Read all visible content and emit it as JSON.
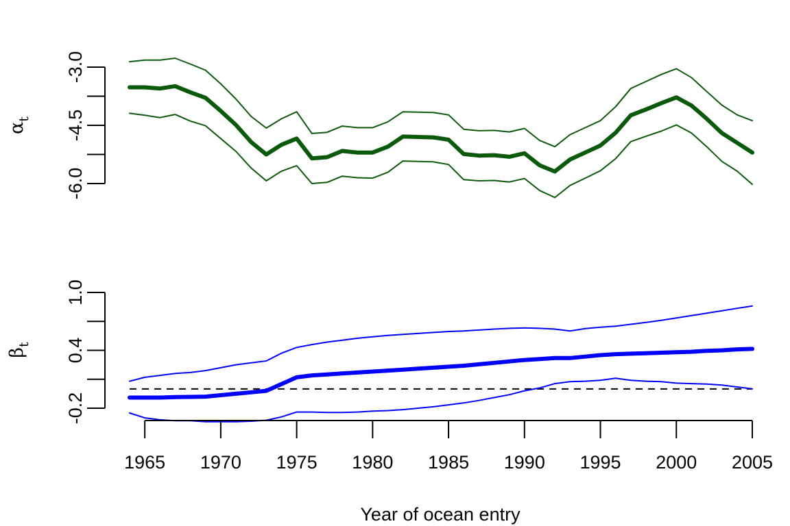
{
  "chart_data": [
    {
      "type": "line",
      "ylabel_symbol": "α",
      "ylabel_subscript": "t",
      "ylim": [
        -6.0,
        -3.0
      ],
      "yticks": [
        -6.0,
        -5.25,
        -4.5,
        -3.75,
        -3.0
      ],
      "ytick_labels": [
        {
          "value": -6.0,
          "label": "-6.0"
        },
        {
          "value": -4.5,
          "label": "-4.5"
        },
        {
          "value": -3.0,
          "label": "-3.0"
        }
      ],
      "colors": {
        "estimate": "#0b5a0b",
        "bounds": "#0b5a0b"
      },
      "x": [
        1964,
        1965,
        1966,
        1967,
        1968,
        1969,
        1970,
        1971,
        1972,
        1973,
        1974,
        1975,
        1976,
        1977,
        1978,
        1979,
        1980,
        1981,
        1982,
        1983,
        1984,
        1985,
        1986,
        1987,
        1988,
        1989,
        1990,
        1991,
        1992,
        1993,
        1994,
        1995,
        1996,
        1997,
        1998,
        1999,
        2000,
        2001,
        2002,
        2003,
        2004,
        2005
      ],
      "series": [
        {
          "role": "estimate",
          "values": [
            -3.52,
            -3.52,
            -3.55,
            -3.49,
            -3.65,
            -3.79,
            -4.13,
            -4.49,
            -4.93,
            -5.25,
            -5.0,
            -4.84,
            -5.35,
            -5.32,
            -5.16,
            -5.2,
            -5.2,
            -5.05,
            -4.79,
            -4.8,
            -4.81,
            -4.87,
            -5.24,
            -5.28,
            -5.27,
            -5.31,
            -5.22,
            -5.53,
            -5.69,
            -5.38,
            -5.2,
            -5.02,
            -4.69,
            -4.24,
            -4.09,
            -3.93,
            -3.78,
            -3.99,
            -4.33,
            -4.7,
            -4.95,
            -5.2
          ]
        },
        {
          "role": "upper",
          "values": [
            -2.86,
            -2.82,
            -2.82,
            -2.77,
            -2.92,
            -3.08,
            -3.43,
            -3.82,
            -4.27,
            -4.57,
            -4.33,
            -4.15,
            -4.71,
            -4.68,
            -4.52,
            -4.56,
            -4.56,
            -4.41,
            -4.15,
            -4.16,
            -4.17,
            -4.23,
            -4.6,
            -4.64,
            -4.63,
            -4.67,
            -4.58,
            -4.89,
            -5.05,
            -4.74,
            -4.56,
            -4.38,
            -4.02,
            -3.55,
            -3.37,
            -3.19,
            -3.04,
            -3.27,
            -3.63,
            -3.98,
            -4.23,
            -4.38
          ]
        },
        {
          "role": "lower",
          "values": [
            -4.19,
            -4.24,
            -4.3,
            -4.22,
            -4.39,
            -4.51,
            -4.84,
            -5.17,
            -5.6,
            -5.93,
            -5.68,
            -5.54,
            -6.0,
            -5.97,
            -5.81,
            -5.85,
            -5.86,
            -5.71,
            -5.42,
            -5.43,
            -5.44,
            -5.51,
            -5.9,
            -5.93,
            -5.92,
            -5.96,
            -5.87,
            -6.18,
            -6.36,
            -6.05,
            -5.86,
            -5.67,
            -5.36,
            -4.92,
            -4.78,
            -4.65,
            -4.49,
            -4.7,
            -5.05,
            -5.43,
            -5.68,
            -6.02
          ]
        }
      ]
    },
    {
      "type": "line",
      "ylabel_symbol": "β",
      "ylabel_subscript": "t",
      "ylim": [
        -0.2,
        1.0
      ],
      "yticks": [
        -0.2,
        0.1,
        0.4,
        0.7,
        1.0
      ],
      "ytick_labels": [
        {
          "value": -0.2,
          "label": "-0.2"
        },
        {
          "value": 0.4,
          "label": "0.4"
        },
        {
          "value": 1.0,
          "label": "1.0"
        }
      ],
      "reference_line": 0.0,
      "colors": {
        "estimate": "#0000ff",
        "bounds": "#0000ff",
        "reference": "#000000"
      },
      "x": [
        1964,
        1965,
        1966,
        1967,
        1968,
        1969,
        1970,
        1971,
        1972,
        1973,
        1974,
        1975,
        1976,
        1977,
        1978,
        1979,
        1980,
        1981,
        1982,
        1983,
        1984,
        1985,
        1986,
        1987,
        1988,
        1989,
        1990,
        1991,
        1992,
        1993,
        1994,
        1995,
        1996,
        1997,
        1998,
        1999,
        2000,
        2001,
        2002,
        2003,
        2004,
        2005
      ],
      "series": [
        {
          "role": "estimate",
          "values": [
            -0.09,
            -0.09,
            -0.09,
            -0.085,
            -0.083,
            -0.08,
            -0.065,
            -0.05,
            -0.035,
            -0.02,
            0.05,
            0.12,
            0.14,
            0.15,
            0.16,
            0.17,
            0.18,
            0.19,
            0.2,
            0.21,
            0.22,
            0.23,
            0.24,
            0.255,
            0.27,
            0.285,
            0.3,
            0.31,
            0.32,
            0.32,
            0.335,
            0.35,
            0.36,
            0.365,
            0.37,
            0.375,
            0.38,
            0.385,
            0.395,
            0.4,
            0.41,
            0.415
          ]
        },
        {
          "role": "upper",
          "values": [
            0.08,
            0.12,
            0.14,
            0.16,
            0.17,
            0.19,
            0.22,
            0.25,
            0.27,
            0.29,
            0.37,
            0.43,
            0.46,
            0.485,
            0.505,
            0.525,
            0.54,
            0.555,
            0.565,
            0.575,
            0.585,
            0.595,
            0.6,
            0.61,
            0.62,
            0.628,
            0.632,
            0.628,
            0.62,
            0.6,
            0.625,
            0.64,
            0.65,
            0.67,
            0.69,
            0.71,
            0.735,
            0.76,
            0.785,
            0.81,
            0.835,
            0.86
          ]
        },
        {
          "role": "lower",
          "values": [
            -0.25,
            -0.3,
            -0.32,
            -0.33,
            -0.33,
            -0.34,
            -0.34,
            -0.34,
            -0.335,
            -0.325,
            -0.29,
            -0.24,
            -0.24,
            -0.245,
            -0.245,
            -0.24,
            -0.23,
            -0.225,
            -0.215,
            -0.2,
            -0.185,
            -0.165,
            -0.145,
            -0.12,
            -0.09,
            -0.06,
            -0.02,
            0.01,
            0.055,
            0.075,
            0.08,
            0.09,
            0.11,
            0.09,
            0.08,
            0.075,
            0.06,
            0.055,
            0.05,
            0.04,
            0.02,
            0.0
          ]
        }
      ]
    }
  ],
  "x_axis": {
    "title": "Year of ocean entry",
    "ticks": [
      1965,
      1970,
      1975,
      1980,
      1985,
      1990,
      1995,
      2000,
      2005
    ],
    "tick_labels": [
      "1965",
      "1970",
      "1975",
      "1980",
      "1985",
      "1990",
      "1995",
      "2000",
      "2005"
    ],
    "xlim": [
      1964,
      2005
    ]
  }
}
